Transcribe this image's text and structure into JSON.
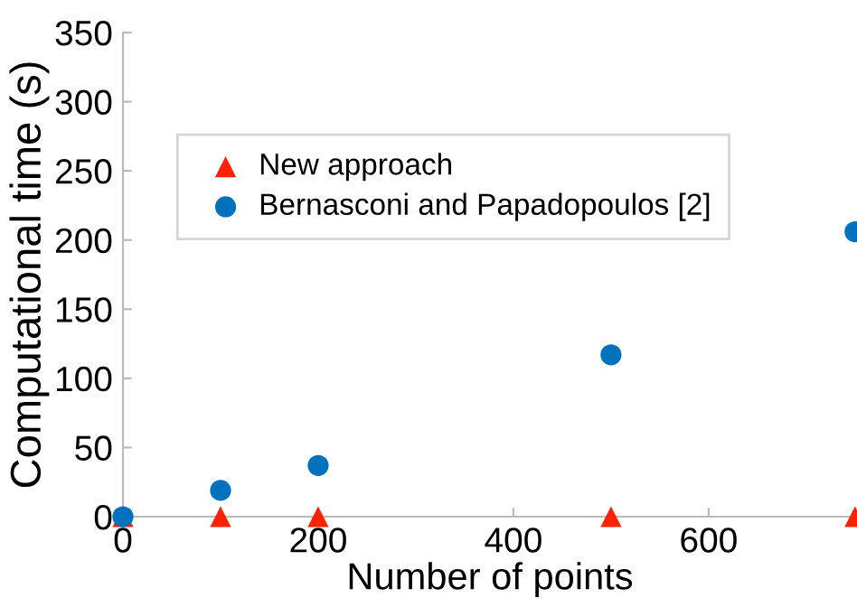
{
  "chart_data": {
    "type": "scatter",
    "xlabel": "Number of points",
    "ylabel": "Computational time (s)",
    "x": [
      0,
      100,
      200,
      500,
      750
    ],
    "series": [
      {
        "name": "New approach",
        "color": "#ff2200",
        "marker": "triangle",
        "values": [
          0,
          0,
          0,
          0,
          0
        ]
      },
      {
        "name": "Bernasconi and Papadopoulos [2]",
        "color": "#0072bd",
        "marker": "circle",
        "values": [
          0,
          19,
          37,
          117,
          206
        ]
      }
    ],
    "xlim": [
      0,
      752
    ],
    "xticks": [
      0,
      200,
      400,
      600
    ],
    "ylim": [
      0,
      350
    ],
    "yticks": [
      0,
      50,
      100,
      150,
      200,
      250,
      300,
      350
    ],
    "grid": false,
    "legend": "top"
  }
}
